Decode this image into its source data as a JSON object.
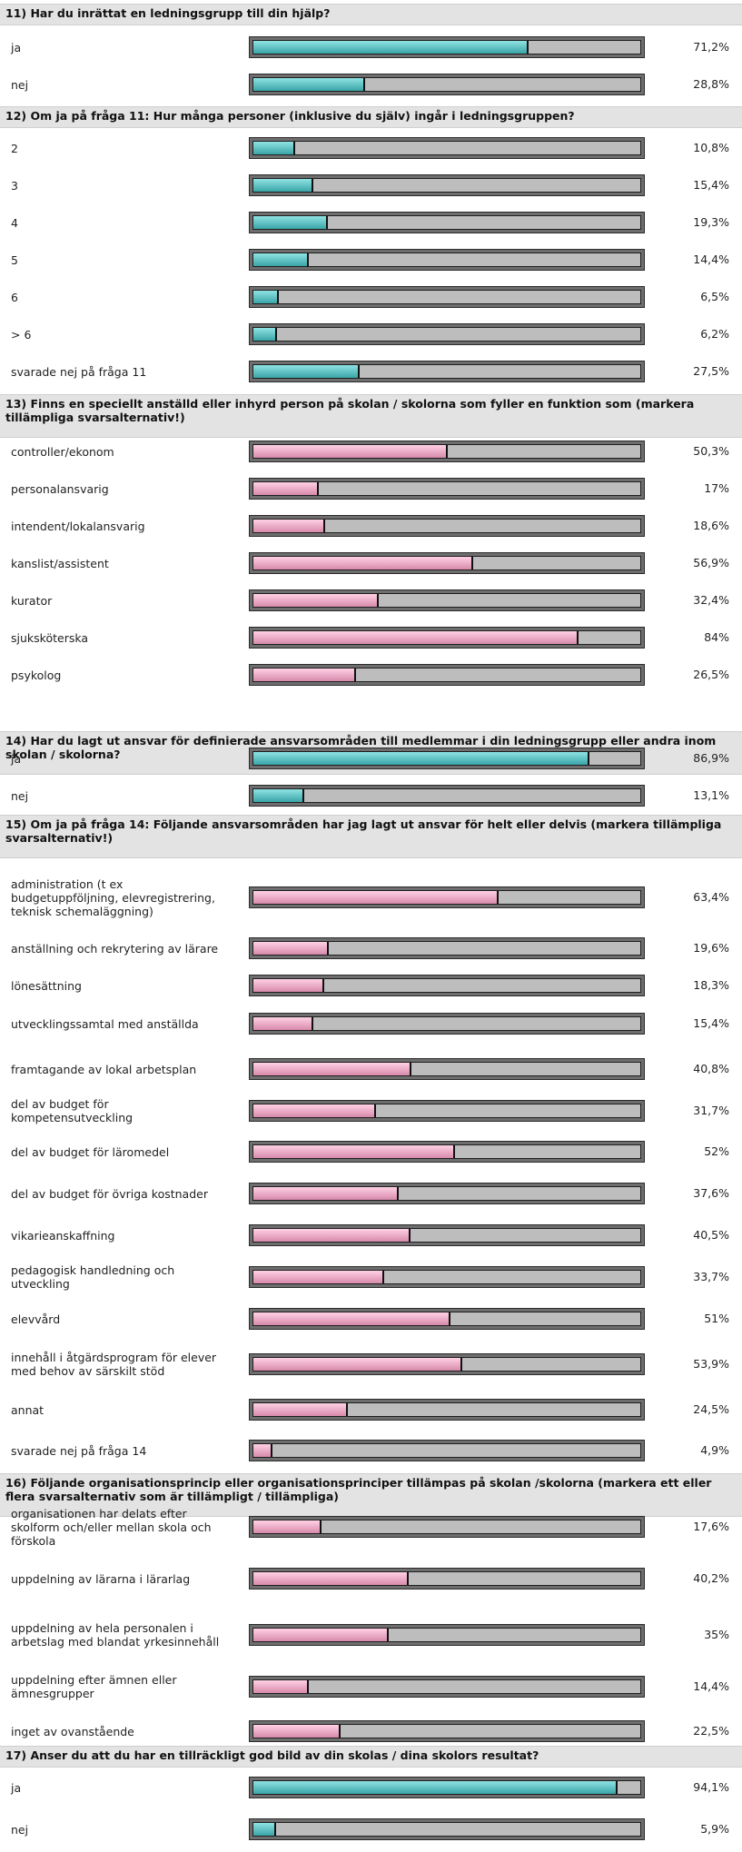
{
  "questions": [
    {
      "title": "11) Har du inrättat en ledningsgrupp till din hjälp?",
      "color": "teal",
      "rows": [
        {
          "label": "ja",
          "value": 71.2,
          "display": "71,2%"
        },
        {
          "label": "nej",
          "value": 28.8,
          "display": "28,8%"
        }
      ]
    },
    {
      "title": "12) Om ja på fråga 11: Hur många personer (inklusive du själv) ingår i ledningsgruppen?",
      "color": "teal",
      "rows": [
        {
          "label": "2",
          "value": 10.8,
          "display": "10,8%"
        },
        {
          "label": "3",
          "value": 15.4,
          "display": "15,4%"
        },
        {
          "label": "4",
          "value": 19.3,
          "display": "19,3%"
        },
        {
          "label": "5",
          "value": 14.4,
          "display": "14,4%"
        },
        {
          "label": "6",
          "value": 6.5,
          "display": "6,5%"
        },
        {
          "label": "> 6",
          "value": 6.2,
          "display": "6,2%"
        },
        {
          "label": "svarade nej på fråga 11",
          "value": 27.5,
          "display": "27,5%"
        }
      ]
    },
    {
      "title": "13) Finns en speciellt anställd eller inhyrd person på skolan / skolorna som fyller en funktion som (markera tillämpliga svarsalternativ!)",
      "color": "pink",
      "rows": [
        {
          "label": "controller/ekonom",
          "value": 50.3,
          "display": "50,3%"
        },
        {
          "label": "personalansvarig",
          "value": 17,
          "display": "17%"
        },
        {
          "label": "intendent/lokalansvarig",
          "value": 18.6,
          "display": "18,6%"
        },
        {
          "label": "kanslist/assistent",
          "value": 56.9,
          "display": "56,9%"
        },
        {
          "label": "kurator",
          "value": 32.4,
          "display": "32,4%"
        },
        {
          "label": "sjuksköterska",
          "value": 84,
          "display": "84%"
        },
        {
          "label": "psykolog",
          "value": 26.5,
          "display": "26,5%"
        }
      ]
    },
    {
      "title": "14) Har du lagt ut ansvar för definierade ansvarsområden till medlemmar i din ledningsgrupp eller andra inom skolan / skolorna?",
      "color": "teal",
      "rows": [
        {
          "label": "ja",
          "value": 86.9,
          "display": "86,9%"
        },
        {
          "label": "nej",
          "value": 13.1,
          "display": "13,1%"
        }
      ]
    },
    {
      "title": "15) Om ja på fråga 14: Följande ansvarsområden har jag lagt ut ansvar för helt eller delvis (markera tillämpliga svarsalternativ!)",
      "color": "pink",
      "rows": [
        {
          "label": "administration (t ex budgetuppföljning, elevregistrering, teknisk schemaläggning)",
          "value": 63.4,
          "display": "63,4%"
        },
        {
          "label": "anställning och rekrytering av lärare",
          "value": 19.6,
          "display": "19,6%"
        },
        {
          "label": "lönesättning",
          "value": 18.3,
          "display": "18,3%"
        },
        {
          "label": "utvecklingssamtal med anställda",
          "value": 15.4,
          "display": "15,4%"
        },
        {
          "label": "framtagande av lokal arbetsplan",
          "value": 40.8,
          "display": "40,8%"
        },
        {
          "label": "del av budget för kompetensutveckling",
          "value": 31.7,
          "display": "31,7%"
        },
        {
          "label": "del av budget för läromedel",
          "value": 52,
          "display": "52%"
        },
        {
          "label": "del av budget för övriga kostnader",
          "value": 37.6,
          "display": "37,6%"
        },
        {
          "label": "vikarieanskaffning",
          "value": 40.5,
          "display": "40,5%"
        },
        {
          "label": "pedagogisk handledning och utveckling",
          "value": 33.7,
          "display": "33,7%"
        },
        {
          "label": "elevvård",
          "value": 51,
          "display": "51%"
        },
        {
          "label": "innehåll i åtgärdsprogram för elever med behov av särskilt stöd",
          "value": 53.9,
          "display": "53,9%"
        },
        {
          "label": "annat",
          "value": 24.5,
          "display": "24,5%"
        },
        {
          "label": "svarade nej på fråga 14",
          "value": 4.9,
          "display": "4,9%"
        }
      ]
    },
    {
      "title": "16) Följande organisationsprincip eller organisationsprinciper tillämpas på skolan /skolorna (markera ett eller flera svarsalternativ som är tillämpligt / tillämpliga)",
      "color": "pink",
      "rows": [
        {
          "label": "organisationen har delats efter skolform och/eller mellan skola och förskola",
          "value": 17.6,
          "display": "17,6%"
        },
        {
          "label": "uppdelning av lärarna i lärarlag",
          "value": 40.2,
          "display": "40,2%"
        },
        {
          "label": "uppdelning av hela personalen i arbetslag med blandat yrkesinnehåll",
          "value": 35,
          "display": "35%"
        },
        {
          "label": "uppdelning efter ämnen eller ämnesgrupper",
          "value": 14.4,
          "display": "14,4%"
        },
        {
          "label": "inget av ovanstående",
          "value": 22.5,
          "display": "22,5%"
        }
      ]
    },
    {
      "title": "17) Anser du att du har en tillräckligt god bild av din skolas / dina skolors resultat?",
      "color": "teal",
      "rows": [
        {
          "label": "ja",
          "value": 94.1,
          "display": "94,1%"
        },
        {
          "label": "nej",
          "value": 5.9,
          "display": "5,9%"
        }
      ]
    }
  ]
}
